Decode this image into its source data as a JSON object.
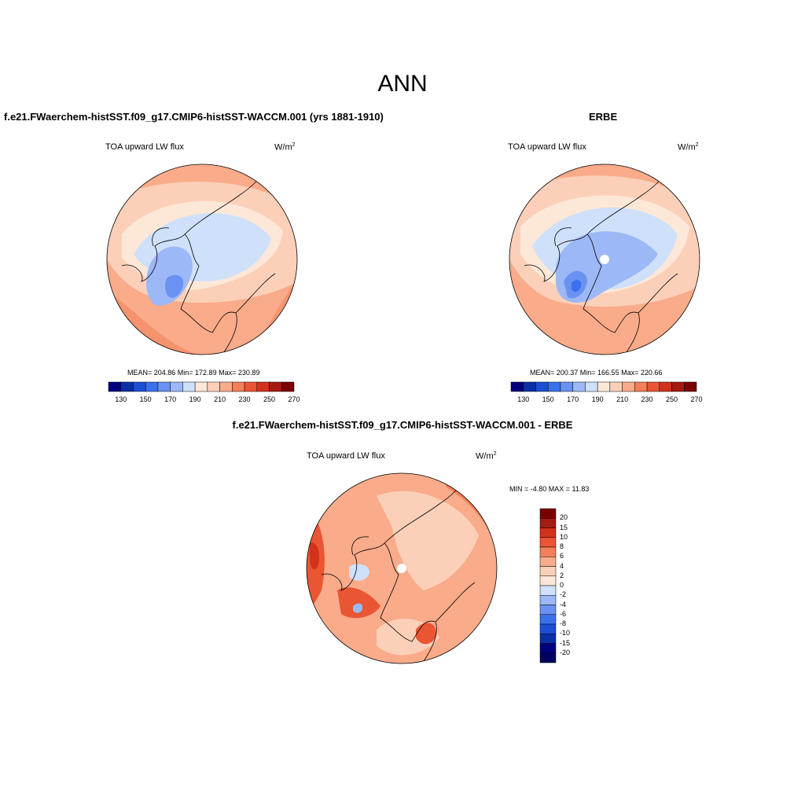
{
  "figure": {
    "title": "ANN"
  },
  "panels": [
    {
      "id": "model",
      "title": "f.e21.FWaerchem-histSST.f09_g17.CMIP6-histSST-WACCM.001 (yrs 1881-1910)",
      "variable": "TOA upward LW flux",
      "units_base": "W/m",
      "units_exp": "2",
      "stats": "MEAN= 204.86  Min= 172.89  Max= 230.89",
      "colorbar_labels": [
        "130",
        "150",
        "170",
        "190",
        "210",
        "230",
        "250",
        "270"
      ]
    },
    {
      "id": "obs",
      "title": "ERBE",
      "variable": "TOA upward LW flux",
      "units_base": "W/m",
      "units_exp": "2",
      "stats": "MEAN= 200.37  Min= 166.55  Max= 220.66",
      "colorbar_labels": [
        "130",
        "150",
        "170",
        "190",
        "210",
        "230",
        "250",
        "270"
      ]
    },
    {
      "id": "diff",
      "title": "f.e21.FWaerchem-histSST.f09_g17.CMIP6-histSST-WACCM.001 - ERBE",
      "variable": "TOA upward LW flux",
      "units_base": "W/m",
      "units_exp": "2",
      "stats": "MIN =  -4.80 MAX =  11.83",
      "colorbar_labels": [
        "20",
        "15",
        "10",
        "8",
        "6",
        "4",
        "2",
        "0",
        "-2",
        "-4",
        "-6",
        "-8",
        "-10",
        "-15",
        "-20"
      ]
    }
  ],
  "colors": {
    "abs_scale": [
      "#00007f",
      "#0a2fa8",
      "#1c4fd6",
      "#3b70ec",
      "#6a92f2",
      "#9db8f6",
      "#cfe0fa",
      "#fde8d8",
      "#fcd0b8",
      "#f9ab8a",
      "#f47f5a",
      "#ea5533",
      "#d2311a",
      "#a61b10",
      "#7a0000"
    ],
    "diff_scale": [
      "#7a0000",
      "#a61b10",
      "#d2311a",
      "#ea5533",
      "#f47f5a",
      "#f9ab8a",
      "#fcd0b8",
      "#fde8d8",
      "#cfe0fa",
      "#9db8f6",
      "#6a92f2",
      "#3b70ec",
      "#1c4fd6",
      "#0a2fa8",
      "#00007f",
      "#000060"
    ]
  }
}
